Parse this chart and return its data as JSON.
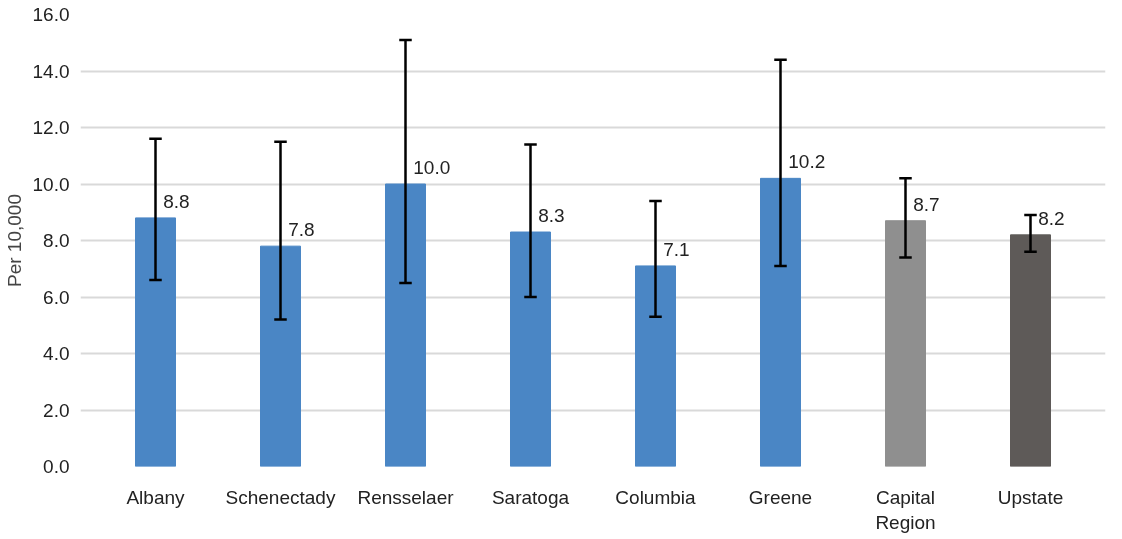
{
  "chart_data": {
    "type": "bar",
    "ylabel": "Per 10,000",
    "categories": [
      "Albany",
      "Schenectady",
      "Rensselaer",
      "Saratoga",
      "Columbia",
      "Greene",
      "Capital Region",
      "Upstate"
    ],
    "values": [
      8.8,
      7.8,
      10.0,
      8.3,
      7.1,
      10.2,
      8.7,
      8.2
    ],
    "colors": [
      "#4a86c5",
      "#4a86c5",
      "#4a86c5",
      "#4a86c5",
      "#4a86c5",
      "#4a86c5",
      "#8f8f8f",
      "#5e5a58"
    ],
    "errors": [
      [
        6.6,
        11.6
      ],
      [
        5.2,
        11.5
      ],
      [
        6.5,
        15.1
      ],
      [
        6.0,
        11.4
      ],
      [
        5.3,
        9.4
      ],
      [
        7.1,
        14.4
      ],
      [
        7.4,
        10.2
      ],
      [
        7.6,
        8.9
      ]
    ],
    "value_labels": [
      "8.8",
      "7.8",
      "10.0",
      "8.3",
      "7.1",
      "10.2",
      "8.7",
      "8.2"
    ],
    "ylim": [
      0,
      16
    ],
    "yticks": [
      {
        "value": 0,
        "label": "0.0"
      },
      {
        "value": 2,
        "label": "2.0"
      },
      {
        "value": 4,
        "label": "4.0"
      },
      {
        "value": 6,
        "label": "6.0"
      },
      {
        "value": 8,
        "label": "8.0"
      },
      {
        "value": 10,
        "label": "10.0"
      },
      {
        "value": 12,
        "label": "12.0"
      },
      {
        "value": 14,
        "label": "14.0"
      },
      {
        "value": 16,
        "label": "16.0"
      }
    ],
    "grid": "y"
  }
}
